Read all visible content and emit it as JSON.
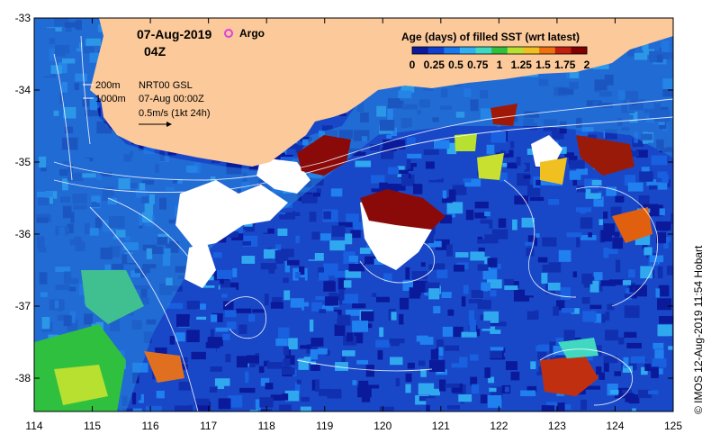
{
  "map": {
    "date": "07-Aug-2019",
    "time": "04Z",
    "argo_label": "Argo",
    "contour_200": "200m",
    "contour_1000": "1000m",
    "product": "NRT00 GSL",
    "product_time": "07-Aug 00:00Z",
    "vector_scale": "0.5m/s (1kt 24h)",
    "copyright": "© IMOS 12-Aug-2019 11:54 Hobart",
    "colors": {
      "land": "#fbc99a",
      "ocean_dark": "#1030b0",
      "ocean_mid": "#1858d8",
      "ocean_light": "#30a8f0",
      "coast_shelf": "#38b8f0",
      "cloud_gap": "#ffffff",
      "argo_marker": "#e040e0"
    }
  },
  "legend": {
    "title": "Age (days) of filled SST (wrt latest)",
    "tick_labels": [
      "0",
      "0.25",
      "0.5",
      "0.75",
      "1",
      "1.25",
      "1.5",
      "1.75",
      "2"
    ],
    "colors": [
      "#0a1a9a",
      "#1040d0",
      "#1878f0",
      "#30b0f0",
      "#40d8c0",
      "#30c040",
      "#b8e030",
      "#f0c020",
      "#f07010",
      "#c02010",
      "#800000"
    ]
  },
  "axes": {
    "x_ticks": [
      "114",
      "115",
      "116",
      "117",
      "118",
      "119",
      "120",
      "121",
      "122",
      "123",
      "124",
      "125"
    ],
    "y_ticks": [
      "-33",
      "-34",
      "-35",
      "-36",
      "-37",
      "-38"
    ]
  }
}
